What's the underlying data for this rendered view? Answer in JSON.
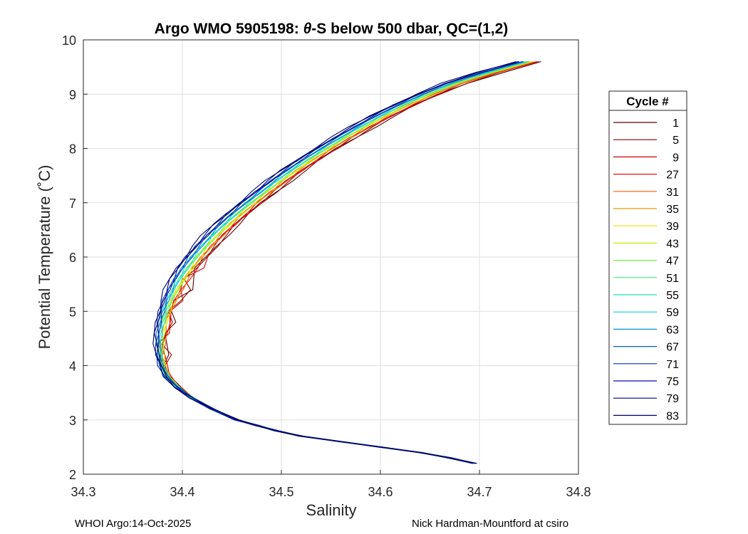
{
  "chart_data": {
    "type": "line",
    "title_prefix": "Argo WMO 5905198: ",
    "title_theta": "θ",
    "title_suffix": "-S below 500 dbar,  QC=(1,2)",
    "xlabel": "Salinity",
    "ylabel": "Potential Temperature (˚C)",
    "xlim": [
      34.3,
      34.8
    ],
    "ylim": [
      2,
      10
    ],
    "xticks": [
      "34.3",
      "34.4",
      "34.5",
      "34.6",
      "34.7",
      "34.8"
    ],
    "yticks": [
      "2",
      "3",
      "4",
      "5",
      "6",
      "7",
      "8",
      "9",
      "10"
    ],
    "grid": true,
    "legend": {
      "title": "Cycle #",
      "placement": "right outside",
      "entries": [
        "1",
        "5",
        "9",
        "27",
        "31",
        "35",
        "39",
        "43",
        "47",
        "51",
        "55",
        "59",
        "63",
        "67",
        "71",
        "75",
        "79",
        "83"
      ]
    },
    "series_colors": [
      "#5a0000",
      "#8a0000",
      "#c80000",
      "#e81010",
      "#f06000",
      "#e0a000",
      "#f0e000",
      "#c0f000",
      "#70f040",
      "#30f080",
      "#20e0c0",
      "#10c8f0",
      "#0090d0",
      "#0060c0",
      "#0030b0",
      "#0010a0",
      "#000080",
      "#000060"
    ],
    "base_profile": {
      "temperature": [
        2.2,
        2.3,
        2.4,
        2.5,
        2.6,
        2.7,
        2.8,
        2.9,
        3.0,
        3.2,
        3.4,
        3.6,
        3.8,
        4.0,
        4.2,
        4.4,
        4.6,
        4.8,
        5.0,
        5.2,
        5.4,
        5.6,
        5.8,
        6.0,
        6.2,
        6.4,
        6.6,
        6.8,
        7.0,
        7.2,
        7.4,
        7.6,
        7.8,
        8.0,
        8.2,
        8.4,
        8.6,
        8.8,
        9.0,
        9.2,
        9.4,
        9.6
      ],
      "salinity": [
        34.695,
        34.67,
        34.64,
        34.6,
        34.56,
        34.52,
        34.495,
        34.475,
        34.455,
        34.43,
        34.41,
        34.395,
        34.385,
        34.38,
        34.378,
        34.378,
        34.379,
        34.381,
        34.384,
        34.388,
        34.393,
        34.399,
        34.406,
        34.414,
        34.423,
        34.433,
        34.444,
        34.456,
        34.469,
        34.483,
        34.497,
        34.512,
        34.528,
        34.545,
        34.563,
        34.582,
        34.602,
        34.624,
        34.648,
        34.675,
        34.71,
        34.75
      ]
    },
    "footer_left": "WHOI Argo:14-Oct-2025",
    "footer_right": "Nick Hardman-Mountford at csiro"
  }
}
